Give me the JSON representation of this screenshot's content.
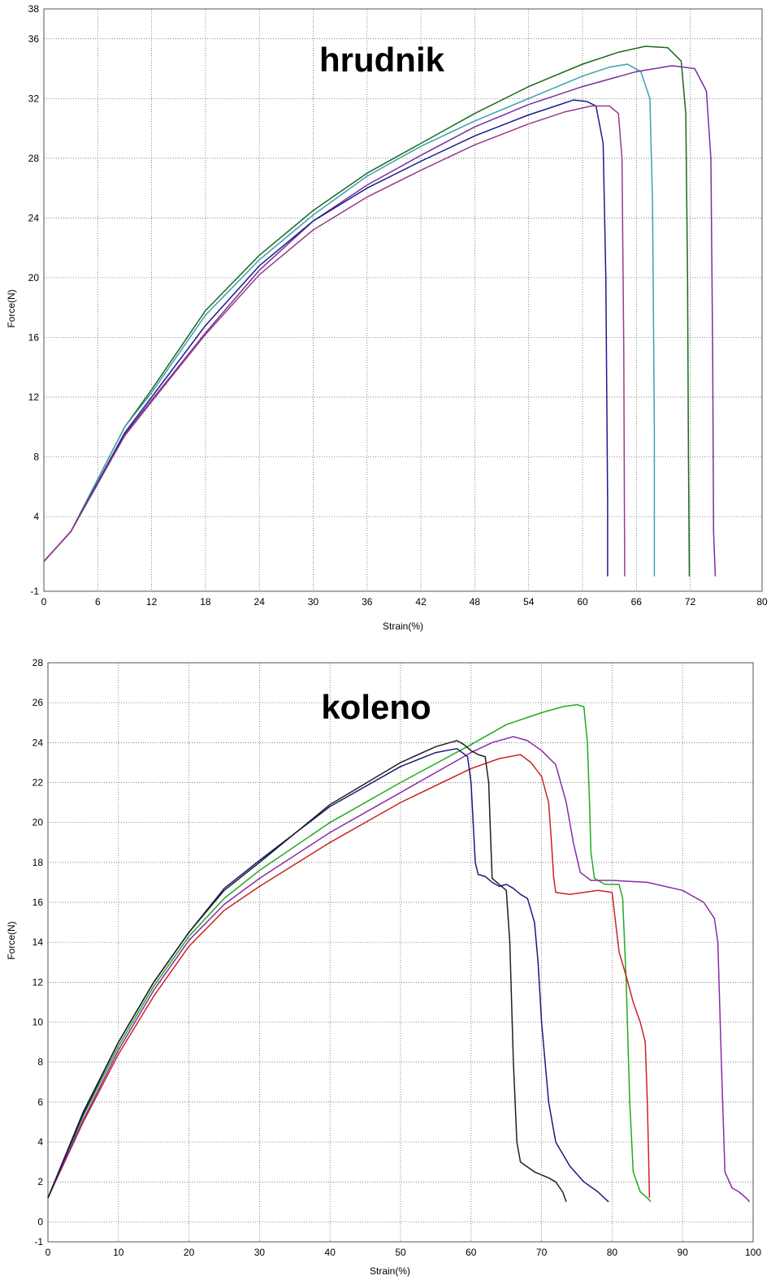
{
  "chart_data": [
    {
      "type": "line",
      "title": "hrudnik",
      "xlabel": "Strain(%)",
      "ylabel": "Force(N)",
      "xlim": [
        0,
        80
      ],
      "ylim": [
        -1,
        38
      ],
      "x_ticks": [
        0,
        6,
        12,
        18,
        24,
        30,
        36,
        42,
        48,
        54,
        60,
        66,
        72,
        80
      ],
      "y_ticks": [
        -1,
        4,
        8,
        12,
        16,
        20,
        24,
        28,
        32,
        36,
        38
      ],
      "grid": true,
      "series": [
        {
          "color": "#1a6a1a",
          "points": [
            [
              0,
              1
            ],
            [
              3,
              3
            ],
            [
              6,
              6.5
            ],
            [
              9,
              10
            ],
            [
              12,
              12.5
            ],
            [
              18,
              17.8
            ],
            [
              24,
              21.5
            ],
            [
              30,
              24.5
            ],
            [
              36,
              27
            ],
            [
              42,
              29
            ],
            [
              48,
              31
            ],
            [
              54,
              32.8
            ],
            [
              60,
              34.3
            ],
            [
              64,
              35.1
            ],
            [
              67,
              35.5
            ],
            [
              69.5,
              35.4
            ],
            [
              71,
              34.5
            ],
            [
              71.5,
              31
            ],
            [
              71.7,
              20
            ],
            [
              71.8,
              8
            ],
            [
              71.9,
              0
            ]
          ]
        },
        {
          "color": "#3aa0b0",
          "points": [
            [
              0,
              1
            ],
            [
              3,
              3
            ],
            [
              6,
              6.5
            ],
            [
              9,
              10
            ],
            [
              12,
              12.3
            ],
            [
              18,
              17.5
            ],
            [
              24,
              21.2
            ],
            [
              30,
              24.2
            ],
            [
              36,
              26.8
            ],
            [
              42,
              28.8
            ],
            [
              48,
              30.5
            ],
            [
              54,
              32
            ],
            [
              60,
              33.5
            ],
            [
              63,
              34.1
            ],
            [
              65,
              34.3
            ],
            [
              66.5,
              33.8
            ],
            [
              67.5,
              32
            ],
            [
              67.8,
              25
            ],
            [
              68,
              10
            ],
            [
              68,
              0
            ]
          ]
        },
        {
          "color": "#7a2ea0",
          "points": [
            [
              0,
              1
            ],
            [
              3,
              3
            ],
            [
              6,
              6.2
            ],
            [
              9,
              9.5
            ],
            [
              12,
              11.8
            ],
            [
              18,
              16.3
            ],
            [
              24,
              20.5
            ],
            [
              30,
              23.8
            ],
            [
              36,
              26.2
            ],
            [
              42,
              28.2
            ],
            [
              48,
              30.1
            ],
            [
              54,
              31.6
            ],
            [
              60,
              32.8
            ],
            [
              66,
              33.8
            ],
            [
              70,
              34.2
            ],
            [
              72.5,
              34
            ],
            [
              73.8,
              32.5
            ],
            [
              74.3,
              28
            ],
            [
              74.5,
              15
            ],
            [
              74.6,
              3
            ],
            [
              74.8,
              0
            ]
          ]
        },
        {
          "color": "#1a1a8c",
          "points": [
            [
              0,
              1
            ],
            [
              3,
              3
            ],
            [
              6,
              6.3
            ],
            [
              9,
              9.6
            ],
            [
              12,
              12
            ],
            [
              18,
              16.8
            ],
            [
              24,
              20.8
            ],
            [
              30,
              23.8
            ],
            [
              36,
              26
            ],
            [
              42,
              27.8
            ],
            [
              48,
              29.5
            ],
            [
              54,
              30.9
            ],
            [
              57,
              31.5
            ],
            [
              59,
              31.9
            ],
            [
              60.5,
              31.8
            ],
            [
              61.5,
              31.5
            ],
            [
              62.3,
              29
            ],
            [
              62.6,
              20
            ],
            [
              62.8,
              5
            ],
            [
              62.8,
              0
            ]
          ]
        },
        {
          "color": "#9a3a8a",
          "points": [
            [
              0,
              1
            ],
            [
              3,
              3
            ],
            [
              6,
              6.2
            ],
            [
              9,
              9.4
            ],
            [
              12,
              11.7
            ],
            [
              18,
              16.2
            ],
            [
              24,
              20.2
            ],
            [
              30,
              23.2
            ],
            [
              36,
              25.4
            ],
            [
              42,
              27.2
            ],
            [
              48,
              28.9
            ],
            [
              54,
              30.3
            ],
            [
              58,
              31.1
            ],
            [
              61,
              31.5
            ],
            [
              63,
              31.5
            ],
            [
              64,
              31
            ],
            [
              64.4,
              28
            ],
            [
              64.6,
              15
            ],
            [
              64.7,
              0
            ]
          ]
        }
      ]
    },
    {
      "type": "line",
      "title": "koleno",
      "xlabel": "Strain(%)",
      "ylabel": "Force(N)",
      "xlim": [
        0,
        100
      ],
      "ylim": [
        -1,
        28
      ],
      "x_ticks": [
        0,
        10,
        20,
        30,
        40,
        50,
        60,
        70,
        80,
        90,
        100
      ],
      "y_ticks": [
        -1,
        0,
        2,
        4,
        6,
        8,
        10,
        12,
        14,
        16,
        18,
        20,
        22,
        24,
        26,
        28
      ],
      "grid": true,
      "series": [
        {
          "color": "#22aa22",
          "points": [
            [
              0,
              1.2
            ],
            [
              5,
              5.3
            ],
            [
              10,
              8.8
            ],
            [
              15,
              11.8
            ],
            [
              20,
              14.3
            ],
            [
              25,
              16.2
            ],
            [
              30,
              17.6
            ],
            [
              40,
              20
            ],
            [
              50,
              22
            ],
            [
              60,
              23.9
            ],
            [
              65,
              24.9
            ],
            [
              70,
              25.5
            ],
            [
              73,
              25.8
            ],
            [
              75,
              25.9
            ],
            [
              76,
              25.8
            ],
            [
              76.5,
              24
            ],
            [
              76.8,
              21
            ],
            [
              77,
              18.5
            ],
            [
              77.5,
              17.2
            ],
            [
              79,
              16.9
            ],
            [
              81,
              16.9
            ],
            [
              81.5,
              16.2
            ],
            [
              82,
              12
            ],
            [
              82.5,
              6
            ],
            [
              83,
              2.5
            ],
            [
              84,
              1.5
            ],
            [
              85,
              1.2
            ],
            [
              85.5,
              1
            ]
          ]
        },
        {
          "color": "#cc2222",
          "points": [
            [
              0,
              1.2
            ],
            [
              5,
              5
            ],
            [
              10,
              8.4
            ],
            [
              15,
              11.3
            ],
            [
              20,
              13.8
            ],
            [
              25,
              15.6
            ],
            [
              30,
              16.8
            ],
            [
              40,
              19
            ],
            [
              50,
              21
            ],
            [
              60,
              22.7
            ],
            [
              64,
              23.2
            ],
            [
              67,
              23.4
            ],
            [
              68.5,
              23
            ],
            [
              70,
              22.3
            ],
            [
              71,
              21
            ],
            [
              71.4,
              19
            ],
            [
              71.7,
              17.3
            ],
            [
              72,
              16.5
            ],
            [
              74,
              16.4
            ],
            [
              78,
              16.6
            ],
            [
              80,
              16.5
            ],
            [
              80.5,
              15
            ],
            [
              81,
              13.5
            ],
            [
              82,
              12.3
            ],
            [
              83,
              11
            ],
            [
              84,
              10
            ],
            [
              84.7,
              9
            ],
            [
              85,
              6
            ],
            [
              85.2,
              3
            ],
            [
              85.3,
              1.2
            ]
          ]
        },
        {
          "color": "#8a2aa8",
          "points": [
            [
              0,
              1.2
            ],
            [
              5,
              5.1
            ],
            [
              10,
              8.6
            ],
            [
              15,
              11.6
            ],
            [
              20,
              14.1
            ],
            [
              25,
              15.9
            ],
            [
              30,
              17.2
            ],
            [
              40,
              19.5
            ],
            [
              50,
              21.5
            ],
            [
              60,
              23.5
            ],
            [
              63,
              24
            ],
            [
              66,
              24.3
            ],
            [
              68,
              24.1
            ],
            [
              70,
              23.6
            ],
            [
              72,
              22.9
            ],
            [
              73.5,
              21
            ],
            [
              74.5,
              19
            ],
            [
              75.5,
              17.5
            ],
            [
              77,
              17.1
            ],
            [
              80,
              17.1
            ],
            [
              85,
              17
            ],
            [
              90,
              16.6
            ],
            [
              93,
              16
            ],
            [
              94.5,
              15.2
            ],
            [
              95,
              14
            ],
            [
              95.5,
              8
            ],
            [
              96,
              2.5
            ],
            [
              97,
              1.7
            ],
            [
              98,
              1.5
            ],
            [
              99,
              1.2
            ],
            [
              99.5,
              1
            ]
          ]
        },
        {
          "color": "#1a1a7a",
          "points": [
            [
              0,
              1.2
            ],
            [
              5,
              5.5
            ],
            [
              10,
              9
            ],
            [
              15,
              12
            ],
            [
              20,
              14.5
            ],
            [
              25,
              16.7
            ],
            [
              30,
              18.1
            ],
            [
              40,
              20.8
            ],
            [
              50,
              22.8
            ],
            [
              55,
              23.5
            ],
            [
              58,
              23.7
            ],
            [
              59.5,
              23.3
            ],
            [
              60,
              22
            ],
            [
              60.3,
              20
            ],
            [
              60.6,
              18
            ],
            [
              61,
              17.4
            ],
            [
              62,
              17.3
            ],
            [
              63,
              17
            ],
            [
              64,
              16.8
            ],
            [
              65,
              16.9
            ],
            [
              66,
              16.7
            ],
            [
              67,
              16.4
            ],
            [
              68,
              16.2
            ],
            [
              69,
              15
            ],
            [
              69.5,
              13
            ],
            [
              70,
              10
            ],
            [
              71,
              6
            ],
            [
              72,
              4
            ],
            [
              74,
              2.8
            ],
            [
              76,
              2
            ],
            [
              78,
              1.5
            ],
            [
              79.5,
              1
            ]
          ]
        },
        {
          "color": "#202020",
          "points": [
            [
              0,
              1.2
            ],
            [
              5,
              5.4
            ],
            [
              10,
              9
            ],
            [
              15,
              12
            ],
            [
              20,
              14.5
            ],
            [
              25,
              16.6
            ],
            [
              30,
              18
            ],
            [
              40,
              20.9
            ],
            [
              50,
              23
            ],
            [
              55,
              23.8
            ],
            [
              57,
              24
            ],
            [
              58,
              24.1
            ],
            [
              59,
              23.9
            ],
            [
              60,
              23.6
            ],
            [
              61,
              23.4
            ],
            [
              62,
              23.3
            ],
            [
              62.5,
              22
            ],
            [
              62.8,
              19
            ],
            [
              63,
              17.2
            ],
            [
              64,
              16.9
            ],
            [
              65,
              16.6
            ],
            [
              65.5,
              14
            ],
            [
              66,
              8
            ],
            [
              66.5,
              4
            ],
            [
              67,
              3
            ],
            [
              69,
              2.5
            ],
            [
              71,
              2.2
            ],
            [
              72,
              2
            ],
            [
              73,
              1.5
            ],
            [
              73.5,
              1
            ]
          ]
        }
      ]
    }
  ]
}
